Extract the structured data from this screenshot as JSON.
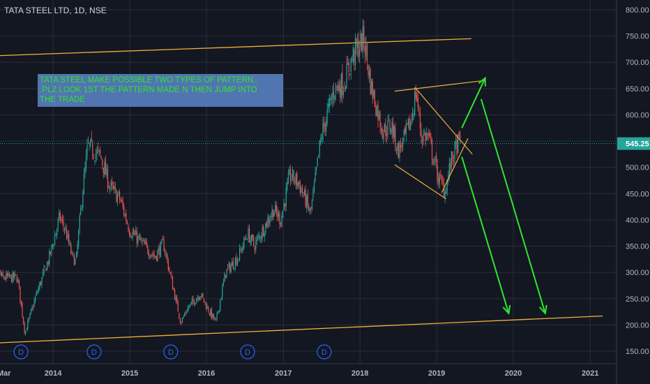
{
  "header": {
    "title": "TATA STEEL LTD, 1D, NSE"
  },
  "annotation": {
    "lines": [
      "TATA STEEL MAKE POSSIBLE TWO TYPES OF PATTERN..",
      ".PLZ LOOK 1ST THE PATTERN MADE N THEN JUMP INTO",
      "THE TRADE"
    ]
  },
  "colors": {
    "background": "#131722",
    "grid": "#2a2e39",
    "candle_up": "#26a69a",
    "candle_down": "#ef5350",
    "trendline": "#f0b33d",
    "arrow": "#2ee62e",
    "dividend_marker": "#2962ff",
    "price_badge": "#26a69a"
  },
  "chart_data": {
    "type": "candlestick",
    "symbol": "TATA STEEL LTD",
    "interval": "1D",
    "exchange": "NSE",
    "x_tick_labels": [
      "Mar",
      "2014",
      "2015",
      "2016",
      "2017",
      "2018",
      "2019",
      "2020",
      "2021"
    ],
    "y_tick_labels": [
      "800.00",
      "750.00",
      "700.00",
      "650.00",
      "600.00",
      "550.00",
      "500.00",
      "450.00",
      "400.00",
      "350.00",
      "300.00",
      "250.00",
      "200.00",
      "150.00"
    ],
    "ylim": [
      135,
      810
    ],
    "current_price": 545.25,
    "current_price_label": "545.25",
    "price_path": [
      [
        "2013-03-01",
        340
      ],
      [
        "2013-05-01",
        290
      ],
      [
        "2013-07-15",
        290
      ],
      [
        "2013-08-20",
        185
      ],
      [
        "2013-10-15",
        260
      ],
      [
        "2013-12-15",
        330
      ],
      [
        "2014-02-01",
        405
      ],
      [
        "2014-03-01",
        380
      ],
      [
        "2014-04-01",
        330
      ],
      [
        "2014-04-20",
        320
      ],
      [
        "2014-05-20",
        450
      ],
      [
        "2014-06-15",
        540
      ],
      [
        "2014-08-15",
        520
      ],
      [
        "2014-10-01",
        460
      ],
      [
        "2014-11-15",
        440
      ],
      [
        "2015-01-01",
        380
      ],
      [
        "2015-03-01",
        355
      ],
      [
        "2015-05-01",
        330
      ],
      [
        "2015-06-10",
        355
      ],
      [
        "2015-08-01",
        260
      ],
      [
        "2015-09-01",
        205
      ],
      [
        "2015-10-01",
        230
      ],
      [
        "2015-12-01",
        260
      ],
      [
        "2016-01-15",
        225
      ],
      [
        "2016-02-15",
        205
      ],
      [
        "2016-04-01",
        300
      ],
      [
        "2016-06-01",
        330
      ],
      [
        "2016-07-15",
        375
      ],
      [
        "2016-08-15",
        350
      ],
      [
        "2016-10-01",
        385
      ],
      [
        "2016-11-15",
        420
      ],
      [
        "2016-12-20",
        400
      ],
      [
        "2017-02-01",
        485
      ],
      [
        "2017-03-15",
        470
      ],
      [
        "2017-04-15",
        440
      ],
      [
        "2017-05-10",
        410
      ],
      [
        "2017-07-01",
        560
      ],
      [
        "2017-09-01",
        650
      ],
      [
        "2017-10-15",
        660
      ],
      [
        "2017-12-01",
        715
      ],
      [
        "2018-01-20",
        745
      ],
      [
        "2018-02-20",
        660
      ],
      [
        "2018-03-20",
        615
      ],
      [
        "2018-04-20",
        570
      ],
      [
        "2018-06-01",
        580
      ],
      [
        "2018-07-01",
        530
      ],
      [
        "2018-08-01",
        555
      ],
      [
        "2018-09-01",
        590
      ],
      [
        "2018-09-25",
        645
      ],
      [
        "2018-10-20",
        560
      ],
      [
        "2018-11-20",
        560
      ],
      [
        "2018-12-15",
        520
      ],
      [
        "2019-01-10",
        480
      ],
      [
        "2019-02-10",
        455
      ],
      [
        "2019-03-10",
        510
      ],
      [
        "2019-04-10",
        545
      ],
      [
        "2019-04-25",
        550
      ]
    ],
    "dividend_markers": [
      {
        "date": "2013-08-01",
        "label": "D"
      },
      {
        "date": "2014-07-15",
        "label": "D"
      },
      {
        "date": "2015-07-15",
        "label": "D"
      },
      {
        "date": "2016-07-15",
        "label": "D"
      },
      {
        "date": "2017-07-15",
        "label": "D"
      }
    ],
    "drawings": {
      "trendlines": [
        {
          "name": "upper-channel-line",
          "from": [
            "2013-03-01",
            712
          ],
          "to": [
            "2019-06-15",
            745
          ]
        },
        {
          "name": "lower-channel-line",
          "from": [
            "2013-03-01",
            165
          ],
          "to": [
            "2021-03-01",
            217
          ]
        },
        {
          "name": "broadening-upper-line",
          "from": [
            "2018-06-15",
            645
          ],
          "to": [
            "2019-08-10",
            665
          ]
        },
        {
          "name": "broadening-lower-line",
          "from": [
            "2018-06-15",
            505
          ],
          "to": [
            "2019-02-15",
            440
          ]
        },
        {
          "name": "wedge-upper-line",
          "from": [
            "2018-09-20",
            652
          ],
          "to": [
            "2019-06-20",
            525
          ]
        },
        {
          "name": "wedge-lower-line",
          "from": [
            "2019-01-25",
            452
          ],
          "to": [
            "2019-05-30",
            555
          ]
        }
      ],
      "arrows": [
        {
          "name": "target-up-arrow",
          "from": [
            "2019-05-01",
            575
          ],
          "to": [
            "2019-08-20",
            670
          ]
        },
        {
          "name": "target-down-arrow-1",
          "from": [
            "2019-05-01",
            520
          ],
          "to": [
            "2019-12-10",
            222
          ]
        },
        {
          "name": "target-down-arrow-2",
          "from": [
            "2019-08-01",
            630
          ],
          "to": [
            "2020-06-01",
            222
          ]
        }
      ]
    }
  }
}
